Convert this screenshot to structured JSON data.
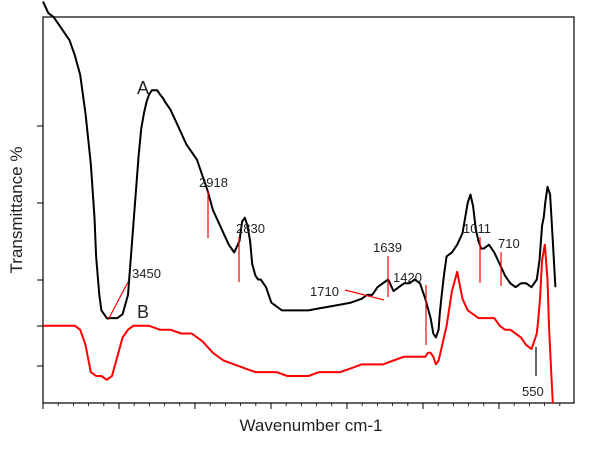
{
  "chart_data": {
    "type": "line",
    "xlabel": "Wavenumber cm-1",
    "ylabel": "Transmittance %",
    "xlim": [
      0,
      100
    ],
    "ylim": [
      0,
      100
    ],
    "grid": false,
    "legend": "none",
    "series": [
      {
        "name": "A",
        "color": "#000000",
        "x": [
          0,
          1,
          2,
          3,
          4,
          5,
          6,
          7,
          8,
          9,
          9.7,
          10,
          10.6,
          11,
          11.5,
          12,
          13,
          14,
          15,
          16,
          17,
          18,
          18.5,
          19,
          19.5,
          20,
          20.5,
          21,
          21.5,
          22,
          22.6,
          23,
          24,
          25,
          26,
          27,
          28,
          29,
          30,
          31,
          32,
          33,
          34,
          35,
          36,
          37,
          37.5,
          38,
          38.5,
          39,
          39.4,
          40,
          40.5,
          41,
          41.5,
          42,
          42.5,
          43,
          44,
          45,
          46,
          47,
          48,
          49,
          50,
          52,
          54,
          56,
          58,
          60,
          61,
          62,
          63,
          64,
          65,
          66,
          67,
          68,
          69,
          70,
          71,
          72,
          73,
          73.5,
          74,
          74.5,
          74.7,
          75,
          75.5,
          76,
          77,
          78,
          79,
          80,
          80.5,
          81,
          81.5,
          82,
          82.5,
          83,
          84,
          85,
          86,
          87,
          88,
          89,
          90,
          91,
          92,
          93,
          93.5,
          94,
          94.3,
          94.6,
          95,
          95.5,
          96,
          96.5
        ],
        "values": [
          104,
          101,
          100,
          98,
          96,
          94,
          90,
          85,
          75,
          62,
          48,
          38,
          28,
          24,
          23,
          22,
          22,
          22,
          23,
          28,
          46,
          64,
          71,
          75,
          78,
          80,
          81,
          81,
          81,
          80,
          79,
          78,
          76,
          73,
          70,
          67,
          65,
          63,
          59,
          55,
          50,
          47,
          44,
          41,
          39,
          42,
          47,
          48,
          46,
          42,
          36,
          33,
          32,
          32,
          31,
          30,
          28,
          26,
          25,
          24,
          24,
          24,
          24,
          24,
          24,
          24.5,
          25,
          25.5,
          26,
          27,
          28,
          28,
          30,
          31,
          32,
          29,
          30,
          31,
          31,
          32,
          31,
          27,
          22,
          18,
          17,
          19,
          23,
          27,
          33,
          38,
          39,
          41,
          44,
          52,
          54,
          51,
          45,
          42,
          40,
          40,
          41,
          39,
          36,
          33,
          31,
          30,
          31,
          31,
          30,
          32,
          37,
          46,
          48,
          52,
          56,
          54,
          42,
          30
        ]
      },
      {
        "name": "B",
        "color": "#ff0000",
        "x": [
          0,
          2,
          4,
          6,
          7,
          8,
          9,
          10,
          11,
          12,
          13,
          14,
          15,
          16,
          17,
          18,
          19,
          20,
          22,
          24,
          26,
          28,
          30,
          32,
          34,
          36,
          38,
          40,
          42,
          44,
          46,
          48,
          50,
          52,
          54,
          56,
          58,
          60,
          62,
          64,
          66,
          68,
          70,
          72,
          72.5,
          73,
          73.5,
          74,
          74.5,
          75,
          76,
          77,
          78,
          79,
          80,
          81,
          82,
          83,
          84,
          85,
          86,
          87,
          88,
          89,
          90,
          91,
          92,
          92.5,
          93,
          93.3,
          93.6,
          94,
          94.5,
          95,
          95.3,
          95.7,
          96
        ],
        "values": [
          20,
          20,
          20,
          20,
          19,
          15,
          8,
          7,
          7,
          6,
          7,
          12,
          17,
          19,
          20,
          20,
          20,
          20,
          19,
          19,
          18,
          18,
          16,
          13,
          11,
          10,
          9,
          8,
          8,
          8,
          7,
          7,
          7,
          8,
          8,
          8,
          9,
          10,
          10,
          10,
          11,
          12,
          12,
          12,
          13,
          13,
          12,
          10,
          11,
          14,
          20,
          29,
          34,
          27,
          24,
          23,
          22,
          22,
          22,
          22,
          20,
          19,
          19,
          18,
          17,
          15,
          14,
          16,
          18,
          22,
          27,
          37,
          41,
          32,
          20,
          8,
          0
        ]
      }
    ],
    "series_labels": [
      {
        "text": "A",
        "series": 0,
        "x": 23.6,
        "y": 86
      },
      {
        "text": "B",
        "series": 1,
        "x": 16.7,
        "y": 25
      }
    ],
    "annotations": [
      {
        "text": "3450",
        "series": 0,
        "x": 12.4,
        "y": 22
      },
      {
        "text": "2918",
        "series": 0,
        "x": 37.0,
        "y": 39
      },
      {
        "text": "2830",
        "series": 0,
        "x": 38.7,
        "y": 32
      },
      {
        "text": "1710",
        "series": 0,
        "x": 66.0,
        "y": 28
      },
      {
        "text": "1639",
        "series": 0,
        "x": 68.2,
        "y": 30
      },
      {
        "text": "1420",
        "series": 0,
        "x": 74.5,
        "y": 17
      },
      {
        "text": "1011",
        "series": 0,
        "x": 85.5,
        "y": 31
      },
      {
        "text": "710",
        "series": 0,
        "x": 87.6,
        "y": 31
      },
      {
        "text": "550",
        "series": 1,
        "x": 93.7,
        "y": 10
      }
    ]
  }
}
